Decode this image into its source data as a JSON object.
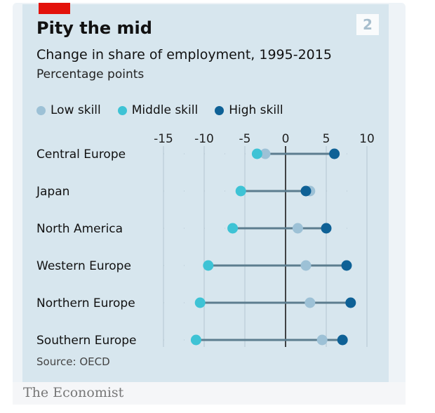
{
  "badge": "2",
  "colors": {
    "low": "#9dc1d6",
    "middle": "#3ec3d5",
    "high": "#0e6196",
    "line": "#5c7d8f",
    "zero": "#1a1a1a",
    "grid": "#b4c6d1"
  },
  "chart_data": {
    "type": "dot",
    "title": "Pity the mid",
    "subtitle": "Change in share of employment, 1995-2015",
    "units": "Percentage points",
    "source": "Source: OECD",
    "xlim": [
      -15,
      10
    ],
    "xticks": [
      "-15",
      "-10",
      "-5",
      "0",
      "5",
      "10"
    ],
    "categories": [
      "Central Europe",
      "Japan",
      "North America",
      "Western Europe",
      "Northern Europe",
      "Southern Europe"
    ],
    "series": [
      {
        "name": "Low skill",
        "key": "low",
        "values": [
          -2.5,
          3,
          1.5,
          2.5,
          3,
          4.5
        ]
      },
      {
        "name": "Middle skill",
        "key": "middle",
        "values": [
          -3.5,
          -5.5,
          -6.5,
          -9.5,
          -10.5,
          -11
        ]
      },
      {
        "name": "High skill",
        "key": "high",
        "values": [
          6,
          2.5,
          5,
          7.5,
          8,
          7
        ]
      }
    ]
  },
  "brand": "The Economist"
}
